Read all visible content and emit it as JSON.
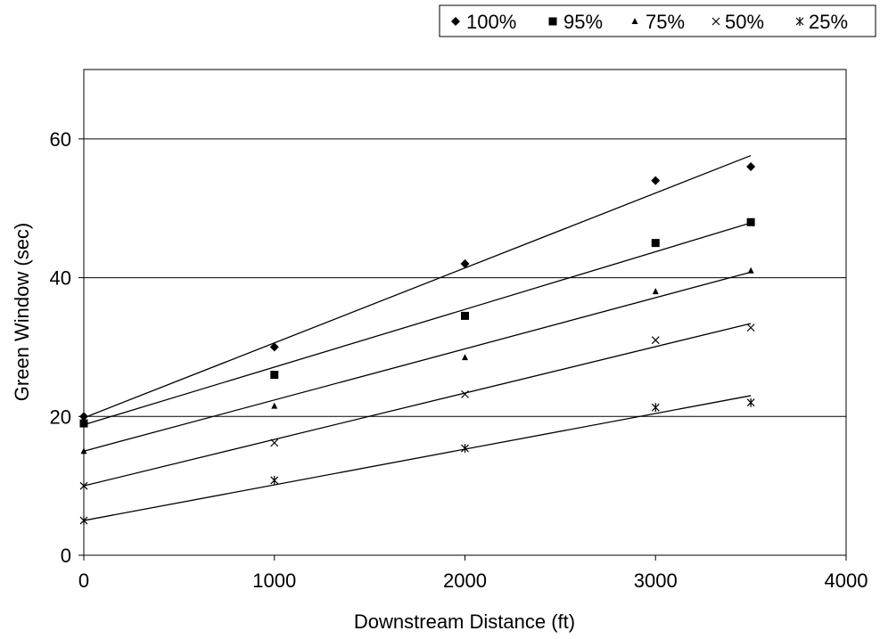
{
  "chart_data": {
    "type": "scatter",
    "xlabel": "Downstream Distance (ft)",
    "ylabel": "Green Window (sec)",
    "xlim": [
      0,
      4000
    ],
    "ylim": [
      0,
      70
    ],
    "x_ticks": [
      "0",
      "1000",
      "2000",
      "3000",
      "4000"
    ],
    "y_ticks": [
      "0",
      "20",
      "40",
      "60"
    ],
    "grid": "horizontal",
    "legend_position": "top-right",
    "trendlines": "linear",
    "series": [
      {
        "name": "100%",
        "marker": "diamond",
        "x": [
          0,
          1000,
          2000,
          3000,
          3500
        ],
        "y": [
          20,
          30,
          42,
          54,
          56
        ],
        "trend": [
          19.8,
          57.6
        ]
      },
      {
        "name": "95%",
        "marker": "square",
        "x": [
          0,
          1000,
          2000,
          3000,
          3500
        ],
        "y": [
          19,
          26,
          34.5,
          45,
          48
        ],
        "trend": [
          18.8,
          47.9
        ]
      },
      {
        "name": "75%",
        "marker": "triangle",
        "x": [
          0,
          1000,
          2000,
          3000,
          3500
        ],
        "y": [
          15,
          21.5,
          28.5,
          38,
          41
        ],
        "trend": [
          15.0,
          40.8
        ]
      },
      {
        "name": "50%",
        "marker": "x",
        "x": [
          0,
          1000,
          2000,
          3000,
          3500
        ],
        "y": [
          10,
          16.2,
          23.2,
          31,
          32.8
        ],
        "trend": [
          10.0,
          33.4
        ]
      },
      {
        "name": "25%",
        "marker": "star",
        "x": [
          0,
          1000,
          2000,
          3000,
          3500
        ],
        "y": [
          5,
          10.8,
          15.4,
          21.3,
          22
        ],
        "trend": [
          5.0,
          23.0
        ]
      }
    ]
  }
}
